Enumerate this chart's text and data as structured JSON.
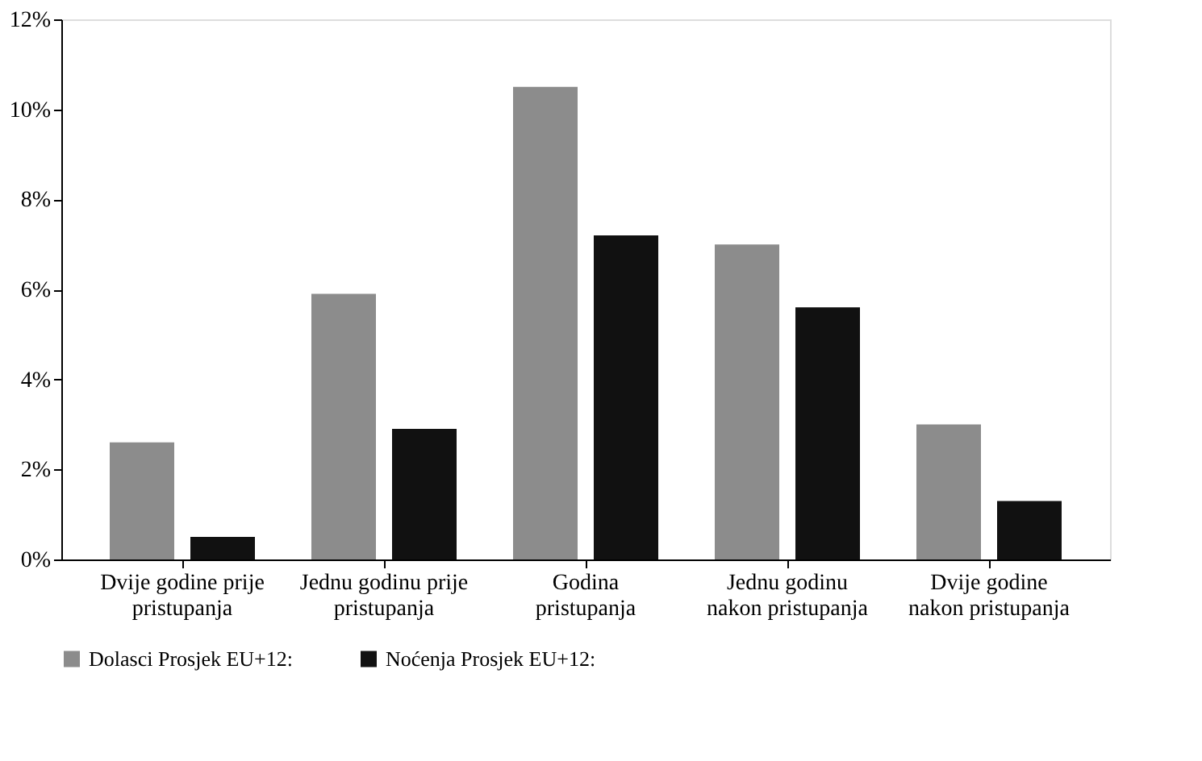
{
  "chart_data": {
    "type": "bar",
    "categories": [
      "Dvije godine prije\npristupanja",
      "Jednu godinu prije\npristupanja",
      "Godina\npristupanja",
      "Jednu godinu\nnakon pristupanja",
      "Dvije godine\nnakon pristupanja"
    ],
    "series": [
      {
        "name": "Dolasci Prosjek EU+12:",
        "color": "#8c8c8c",
        "values": [
          2.6,
          5.9,
          10.5,
          7.0,
          3.0
        ]
      },
      {
        "name": "Noćenja Prosjek EU+12:",
        "color": "#111111",
        "values": [
          0.5,
          2.9,
          7.2,
          5.6,
          1.3
        ]
      }
    ],
    "ylim": [
      0,
      12
    ],
    "yticks": [
      {
        "value": 0,
        "label": "0%"
      },
      {
        "value": 2,
        "label": "2%"
      },
      {
        "value": 4,
        "label": "4%"
      },
      {
        "value": 6,
        "label": "6%"
      },
      {
        "value": 8,
        "label": "8%"
      },
      {
        "value": 10,
        "label": "10%"
      },
      {
        "value": 12,
        "label": "12%"
      }
    ],
    "grid": false,
    "legend": "bottom"
  }
}
